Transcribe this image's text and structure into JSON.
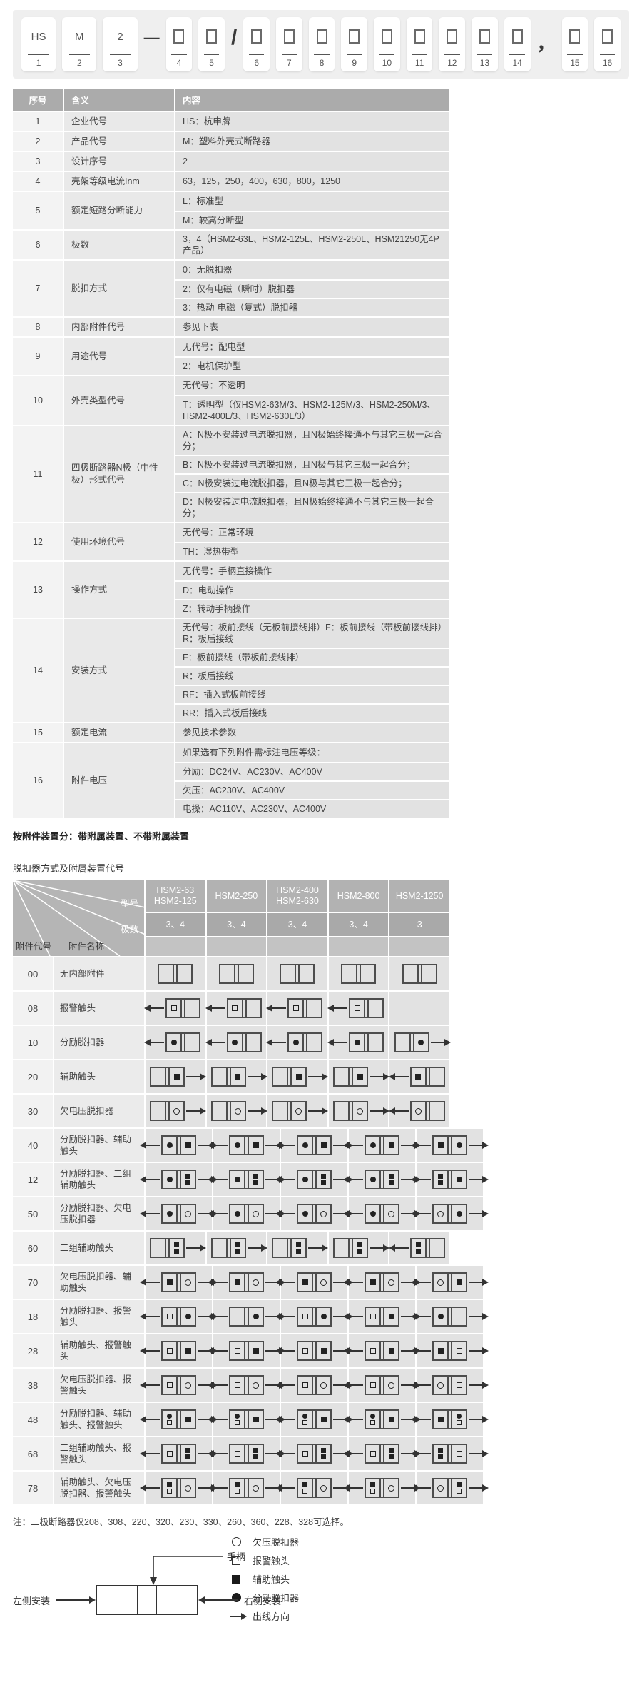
{
  "model_designation": {
    "positions": [
      {
        "num": "1",
        "text": "HS"
      },
      {
        "num": "2",
        "text": "M"
      },
      {
        "num": "3",
        "text": "2"
      },
      {
        "sep": "—"
      },
      {
        "num": "4"
      },
      {
        "num": "5"
      },
      {
        "sep": "/"
      },
      {
        "num": "6"
      },
      {
        "num": "7"
      },
      {
        "num": "8"
      },
      {
        "num": "9"
      },
      {
        "num": "10"
      },
      {
        "num": "11"
      },
      {
        "num": "12"
      },
      {
        "num": "13"
      },
      {
        "num": "14"
      },
      {
        "sep": "，"
      },
      {
        "num": "15"
      },
      {
        "num": "16"
      }
    ]
  },
  "meaning_table": {
    "headers": [
      "序号",
      "含义",
      "内容"
    ],
    "rows": [
      {
        "no": "1",
        "meaning": "企业代号",
        "contents": [
          "HS：杭申牌"
        ]
      },
      {
        "no": "2",
        "meaning": "产品代号",
        "contents": [
          "M：塑料外壳式断路器"
        ]
      },
      {
        "no": "3",
        "meaning": "设计序号",
        "contents": [
          "2"
        ]
      },
      {
        "no": "4",
        "meaning": "壳架等级电流Inm",
        "contents": [
          "63，125，250，400，630，800，1250"
        ]
      },
      {
        "no": "5",
        "meaning": "额定短路分断能力",
        "contents": [
          "L：标准型",
          "M：较高分断型"
        ]
      },
      {
        "no": "6",
        "meaning": "极数",
        "contents": [
          "3，4（HSM2-63L、HSM2-125L、HSM2-250L、HSM21250无4P产品）"
        ]
      },
      {
        "no": "7",
        "meaning": "脱扣方式",
        "contents": [
          "0：无脱扣器",
          "2：仅有电磁（瞬时）脱扣器",
          "3：热动-电磁（复式）脱扣器"
        ]
      },
      {
        "no": "8",
        "meaning": "内部附件代号",
        "contents": [
          "参见下表"
        ]
      },
      {
        "no": "9",
        "meaning": "用途代号",
        "contents": [
          "无代号：配电型",
          "2：电机保护型"
        ]
      },
      {
        "no": "10",
        "meaning": "外壳类型代号",
        "contents": [
          "无代号：不透明",
          "T：透明型（仅HSM2-63M/3、HSM2-125M/3、HSM2-250M/3、HSM2-400L/3、HSM2-630L/3）"
        ]
      },
      {
        "no": "11",
        "meaning": "四极断路器N极（中性极）形式代号",
        "contents": [
          "A：N极不安装过电流脱扣器，且N极始终接通不与其它三极一起合分；",
          "B：N极不安装过电流脱扣器，且N极与其它三极一起合分；",
          "C：N极安装过电流脱扣器，且N极与其它三极一起合分；",
          "D：N极安装过电流脱扣器，且N极始终接通不与其它三极一起合分；"
        ]
      },
      {
        "no": "12",
        "meaning": "使用环境代号",
        "contents": [
          "无代号：正常环境",
          "TH：湿热带型"
        ]
      },
      {
        "no": "13",
        "meaning": "操作方式",
        "contents": [
          "无代号：手柄直接操作",
          "D：电动操作",
          "Z：转动手柄操作"
        ]
      },
      {
        "no": "14",
        "meaning": "安装方式",
        "contents": [
          "无代号：板前接线（无板前接线排）F：板前接线（带板前接线排）R：板后接线",
          "F：板前接线（带板前接线排）",
          "R：板后接线",
          "RF：插入式板前接线",
          "RR：插入式板后接线"
        ]
      },
      {
        "no": "15",
        "meaning": "额定电流",
        "contents": [
          "参见技术参数"
        ]
      },
      {
        "no": "16",
        "meaning": "附件电压",
        "contents": [
          "如果选有下列附件需标注电压等级：",
          "分励：DC24V、AC230V、AC400V",
          "欠压：AC230V、AC400V",
          "电操：AC110V、AC230V、AC400V"
        ]
      }
    ]
  },
  "classification_note": "按附件装置分：带附属装置、不带附属装置",
  "accessory_table": {
    "title": "脱扣器方式及附属装置代号",
    "corner": {
      "model_label": "型号",
      "poles_label": "极数",
      "code_label": "附件代号",
      "name_label": "附件名称"
    },
    "columns": [
      {
        "model": [
          "HSM2-63",
          "HSM2-125"
        ],
        "poles": "3、4"
      },
      {
        "model": [
          "HSM2-250"
        ],
        "poles": "3、4"
      },
      {
        "model": [
          "HSM2-400",
          "HSM2-630"
        ],
        "poles": "3、4"
      },
      {
        "model": [
          "HSM2-800"
        ],
        "poles": "3、4"
      },
      {
        "model": [
          "HSM2-1250"
        ],
        "poles": "3"
      }
    ],
    "rows": [
      {
        "code": "00",
        "name": "无内部附件",
        "std": {
          "a": "",
          "l": "",
          "r": ""
        },
        "last": {
          "a": "",
          "l": "",
          "r": ""
        }
      },
      {
        "code": "08",
        "name": "报警触头",
        "std": {
          "a": "l",
          "l": "sq",
          "r": ""
        },
        "last": null
      },
      {
        "code": "10",
        "name": "分励脱扣器",
        "std": {
          "a": "l",
          "l": "dot",
          "r": ""
        },
        "last": {
          "a": "r",
          "l": "",
          "r": "dot"
        }
      },
      {
        "code": "20",
        "name": "辅助触头",
        "std": {
          "a": "r",
          "l": "",
          "r": "fsq"
        },
        "last": {
          "a": "l",
          "l": "fsq",
          "r": ""
        }
      },
      {
        "code": "30",
        "name": "欠电压脱扣器",
        "std": {
          "a": "r",
          "l": "",
          "r": "circ"
        },
        "last": {
          "a": "l",
          "l": "circ",
          "r": ""
        }
      },
      {
        "code": "40",
        "name": "分励脱扣器、辅助触头",
        "std": {
          "a": "lr",
          "l": "dot",
          "r": "fsq"
        },
        "last": {
          "a": "lr",
          "l": "fsq",
          "r": "dot"
        }
      },
      {
        "code": "12",
        "name": "分励脱扣器、二组辅助触头",
        "std": {
          "a": "lr",
          "l": "dot",
          "r": [
            "fsq",
            "fsq"
          ]
        },
        "last": {
          "a": "lr",
          "l": [
            "fsq",
            "fsq"
          ],
          "r": "dot"
        }
      },
      {
        "code": "50",
        "name": "分励脱扣器、欠电压脱扣器",
        "std": {
          "a": "lr",
          "l": "dot",
          "r": "circ"
        },
        "last": {
          "a": "lr",
          "l": "circ",
          "r": "dot"
        }
      },
      {
        "code": "60",
        "name": "二组辅助触头",
        "std": {
          "a": "r",
          "l": "",
          "r": [
            "fsq",
            "fsq"
          ]
        },
        "last": {
          "a": "l",
          "l": [
            "fsq",
            "fsq"
          ],
          "r": ""
        }
      },
      {
        "code": "70",
        "name": "欠电压脱扣器、辅助触头",
        "std": {
          "a": "lr",
          "l": "fsq",
          "r": "circ"
        },
        "last": {
          "a": "lr",
          "l": "circ",
          "r": "fsq"
        }
      },
      {
        "code": "18",
        "name": "分励脱扣器、报警触头",
        "std": {
          "a": "lr",
          "l": "sq",
          "r": "dot"
        },
        "last": {
          "a": "lr",
          "l": "dot",
          "r": "sq"
        }
      },
      {
        "code": "28",
        "name": "辅助触头、报警触头",
        "std": {
          "a": "lr",
          "l": "sq",
          "r": "fsq"
        },
        "last": {
          "a": "lr",
          "l": "fsq",
          "r": "sq"
        }
      },
      {
        "code": "38",
        "name": "欠电压脱扣器、报警触头",
        "std": {
          "a": "lr",
          "l": "sq",
          "r": "circ"
        },
        "last": {
          "a": "lr",
          "l": "circ",
          "r": "sq"
        }
      },
      {
        "code": "48",
        "name": "分励脱扣器、辅助触头、报警触头",
        "std": {
          "a": "lr",
          "l": [
            "dot",
            "sq"
          ],
          "r": "fsq"
        },
        "last": {
          "a": "lr",
          "l": "fsq",
          "r": [
            "dot",
            "sq"
          ]
        }
      },
      {
        "code": "68",
        "name": "二组辅助触头、报警触头",
        "std": {
          "a": "lr",
          "l": "sq",
          "r": [
            "fsq",
            "fsq"
          ]
        },
        "last": {
          "a": "lr",
          "l": [
            "fsq",
            "fsq"
          ],
          "r": "sq"
        }
      },
      {
        "code": "78",
        "name": "辅助触头、欠电压脱扣器、报警触头",
        "std": {
          "a": "lr",
          "l": [
            "fsq",
            "sq"
          ],
          "r": "circ"
        },
        "last": {
          "a": "lr",
          "l": "circ",
          "r": [
            "fsq",
            "sq"
          ]
        }
      }
    ]
  },
  "note": "注：二极断路器仅208、308、220、320、230、330、260、360、228、328可选择。",
  "mount_diagram": {
    "handle": "手柄",
    "left": "左侧安装",
    "right": "右侧安装"
  },
  "legend": [
    {
      "sym": "circ",
      "label": "欠压脱扣器"
    },
    {
      "sym": "sq",
      "label": "报警触头"
    },
    {
      "sym": "fsq",
      "label": "辅助触头"
    },
    {
      "sym": "dot",
      "label": "分励脱扣器"
    },
    {
      "sym": "arrow",
      "label": "出线方向"
    }
  ]
}
